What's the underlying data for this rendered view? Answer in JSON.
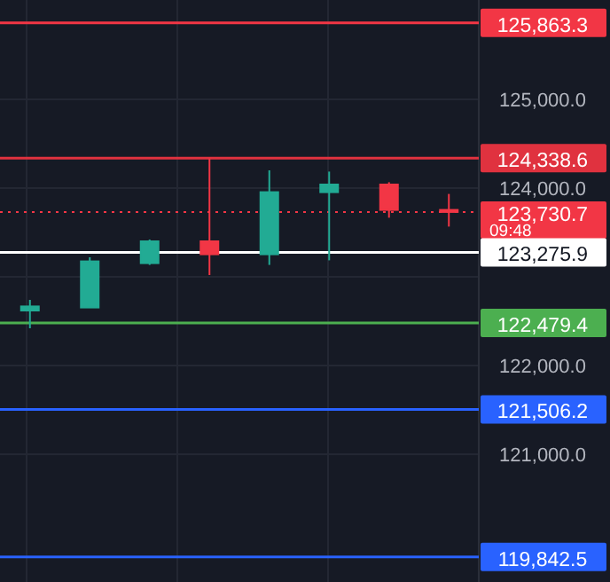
{
  "chart_data": {
    "type": "candlestick",
    "categories": [
      null,
      null,
      null,
      null,
      null,
      null,
      null,
      null
    ],
    "ohlc": [
      [
        122620,
        122740,
        122420,
        122666
      ],
      [
        122654,
        123220,
        122654,
        123174
      ],
      [
        123154,
        123420,
        123134,
        123400
      ],
      [
        123400,
        124334,
        123020,
        123254
      ],
      [
        123254,
        124200,
        123134,
        123954
      ],
      [
        123954,
        124186,
        123186,
        124040
      ],
      [
        124040,
        124066,
        123666,
        123754
      ],
      [
        123754,
        123934,
        123566,
        123730.7
      ]
    ],
    "ylim": [
      119560,
      126120
    ],
    "yticks": [
      {
        "value": 121000,
        "label": "121,000.0"
      },
      {
        "value": 122000,
        "label": "122,000.0"
      },
      {
        "value": 123000,
        "label": null
      },
      {
        "value": 124000,
        "label": "124,000.0"
      },
      {
        "value": 125000,
        "label": "125,000.0"
      }
    ],
    "grid": true,
    "tick_labels": "y",
    "colors": [
      "#22ab94",
      "#22ab94",
      "#22ab94",
      "#f23645",
      "#22ab94",
      "#22ab94",
      "#f23645",
      "#f23645"
    ],
    "ref_lines": [
      {
        "axis": "y",
        "value": 125863.3,
        "label": "125,863.3",
        "color": "#f23645"
      },
      {
        "axis": "y",
        "value": 124338.6,
        "label": "124,338.6",
        "color": "#e0323f"
      },
      {
        "axis": "y",
        "value": 123730.7,
        "label": "123,730.7",
        "color": "#f23645",
        "line_style": "dotted"
      },
      {
        "axis": "y",
        "value": 123275.9,
        "label": "123,275.9",
        "color": "#ffffff"
      },
      {
        "axis": "y",
        "value": 122479.4,
        "label": "122,479.4",
        "color": "#4caf50"
      },
      {
        "axis": "y",
        "value": 121506.2,
        "label": "121,506.2",
        "color": "#2962ff"
      },
      {
        "axis": "y",
        "value": 119842.5,
        "label": "119,842.5",
        "color": "#2962ff"
      }
    ],
    "annotations": [
      "09:48"
    ]
  }
}
